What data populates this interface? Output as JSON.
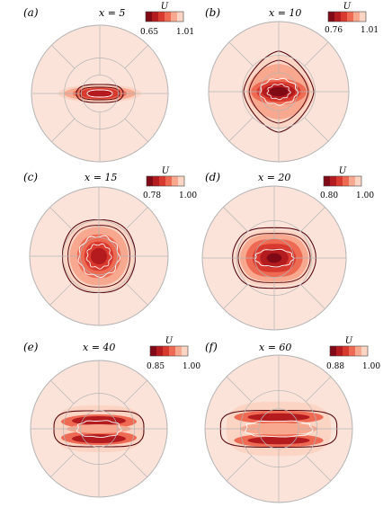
{
  "figure": {
    "panels": [
      {
        "id": "a",
        "label": "(a)",
        "title": "x = 5",
        "cbar_title": "U",
        "cbar_min": "0.65",
        "cbar_max": "1.01"
      },
      {
        "id": "b",
        "label": "(b)",
        "title": "x = 10",
        "cbar_title": "U",
        "cbar_min": "0.76",
        "cbar_max": "1.01"
      },
      {
        "id": "c",
        "label": "(c)",
        "title": "x = 15",
        "cbar_title": "U",
        "cbar_min": "0.78",
        "cbar_max": "1.00"
      },
      {
        "id": "d",
        "label": "(d)",
        "title": "x = 20",
        "cbar_title": "U",
        "cbar_min": "0.80",
        "cbar_max": "1.00"
      },
      {
        "id": "e",
        "label": "(e)",
        "title": "x = 40",
        "cbar_title": "U",
        "cbar_min": "0.85",
        "cbar_max": "1.00"
      },
      {
        "id": "f",
        "label": "(f)",
        "title": "x = 60",
        "cbar_title": "U",
        "cbar_min": "0.88",
        "cbar_max": "1.00"
      }
    ],
    "colors": {
      "background_fill": "#fbe3d9",
      "grid_line": "#b5b5b5",
      "level_colors": [
        "#7f0a15",
        "#b31b1f",
        "#d93a2f",
        "#ef6a53",
        "#f7a88f",
        "#fbd4c3"
      ],
      "contour_dark": "#5a0a12",
      "contour_light": "#ffffff"
    }
  }
}
